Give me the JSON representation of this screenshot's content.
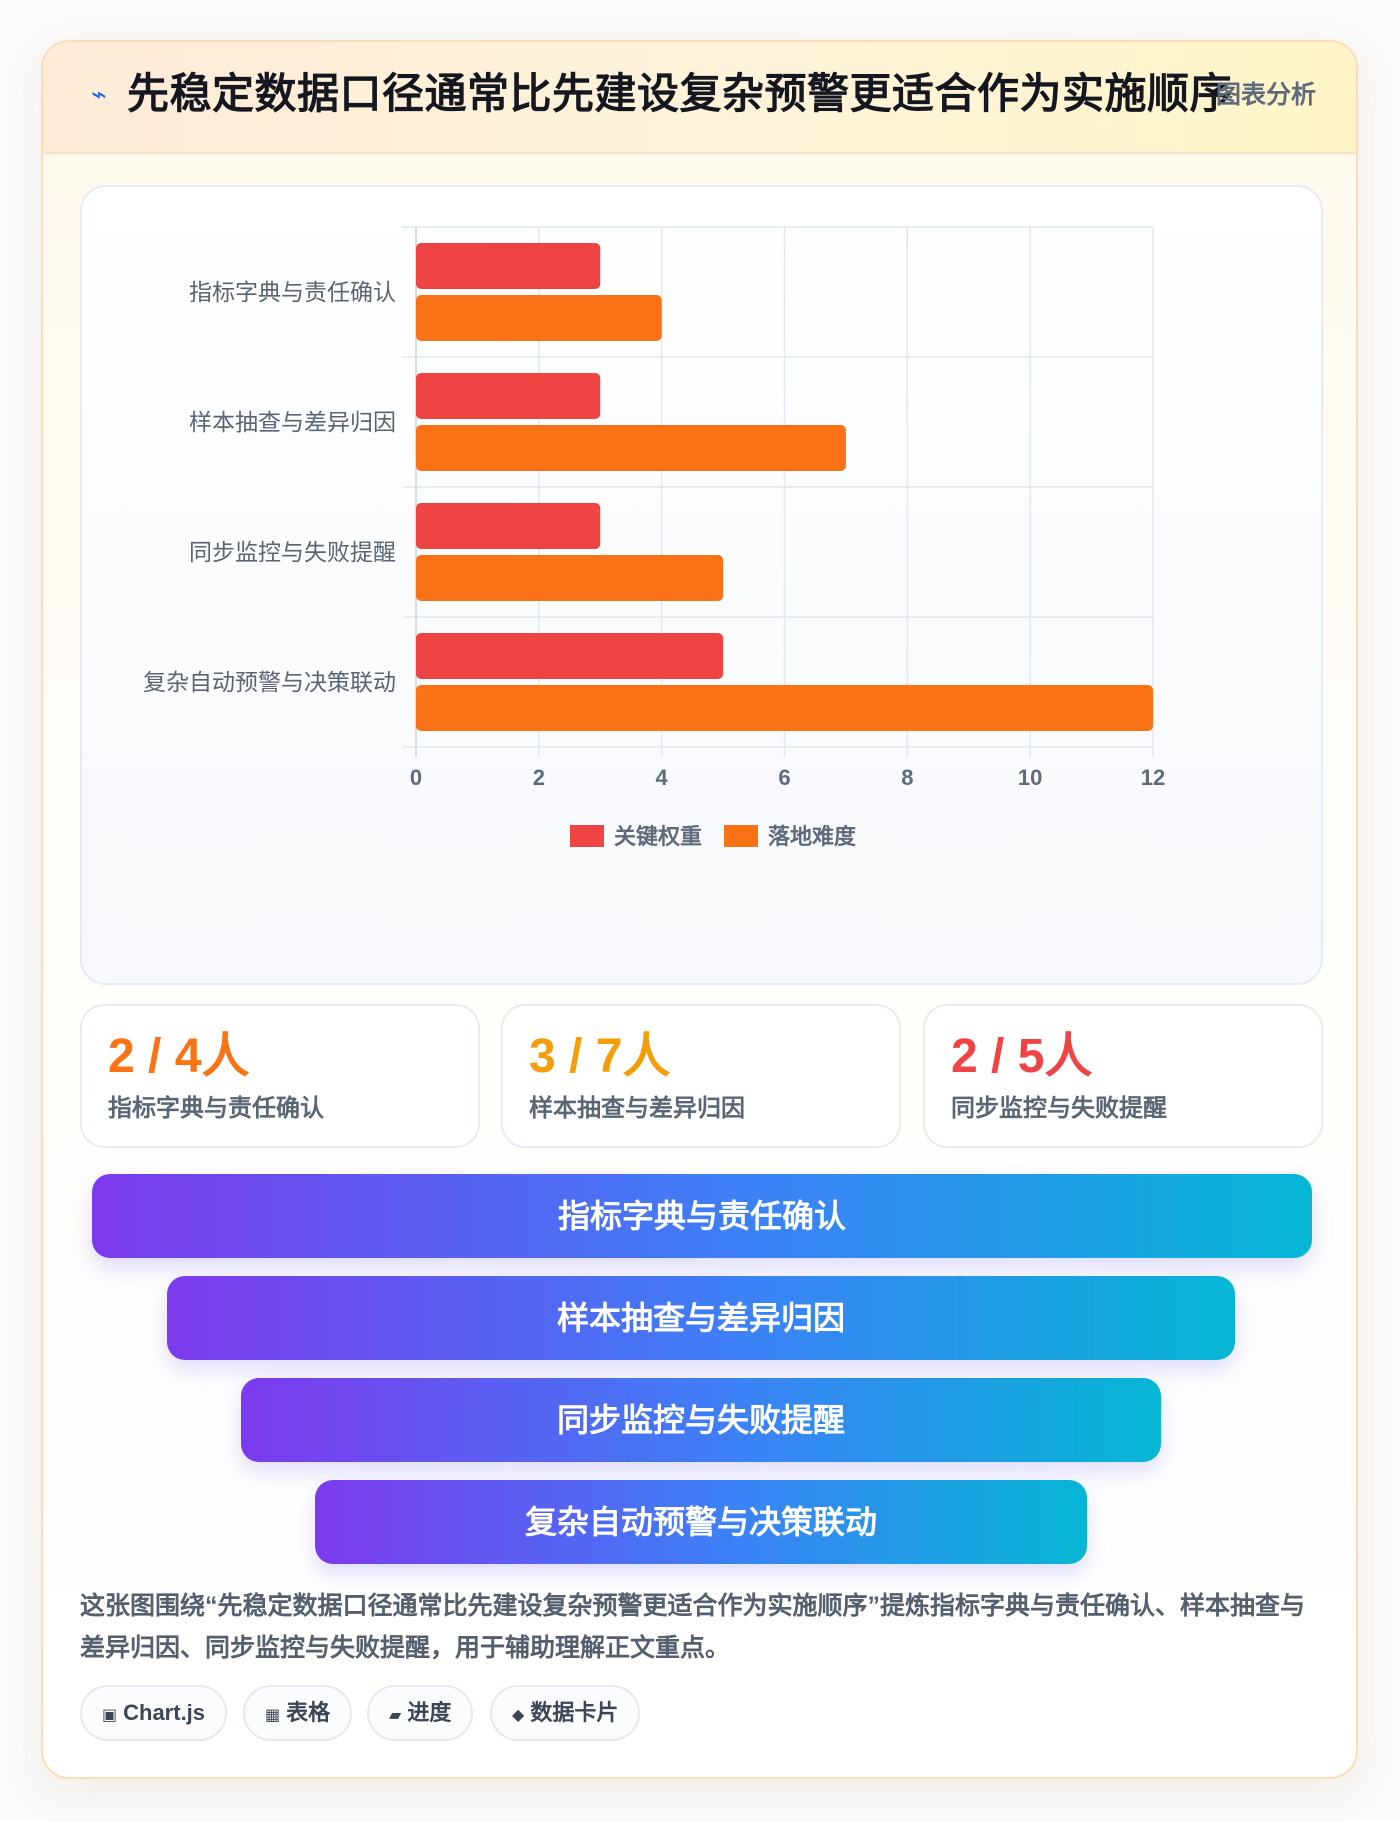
{
  "header": {
    "icon": "lightning-icon",
    "icon_glyph": "⌁",
    "title": "先稳定数据口径通常比先建设复杂预警更适合作为实施顺序",
    "tag": "图表分析"
  },
  "chart_data": {
    "type": "bar",
    "orientation": "horizontal",
    "categories": [
      "指标字典与责任确认",
      "样本抽查与差异归因",
      "同步监控与失败提醒",
      "复杂自动预警与决策联动"
    ],
    "series": [
      {
        "name": "关键权重",
        "values": [
          3,
          3,
          3,
          5
        ],
        "color": "#ef4444"
      },
      {
        "name": "落地难度",
        "values": [
          4,
          7,
          5,
          12
        ],
        "color": "#f97316"
      }
    ],
    "xlim": [
      0,
      12
    ],
    "xticks": [
      "0",
      "2",
      "4",
      "6",
      "8",
      "10",
      "12"
    ],
    "grid": true,
    "legend": "bottom"
  },
  "stats": [
    {
      "value": "2 / 4人",
      "label": "指标字典与责任确认",
      "color": "#f97316"
    },
    {
      "value": "3 / 7人",
      "label": "样本抽查与差异归因",
      "color": "#f59e0b"
    },
    {
      "value": "2 / 5人",
      "label": "同步监控与失败提醒",
      "color": "#ef4444"
    }
  ],
  "funnel": [
    {
      "label": "指标字典与责任确认"
    },
    {
      "label": "样本抽查与差异归因"
    },
    {
      "label": "同步监控与失败提醒"
    },
    {
      "label": "复杂自动预警与决策联动"
    }
  ],
  "description": "这张图围绕“先稳定数据口径通常比先建设复杂预警更适合作为实施顺序”提炼指标字典与责任确认、样本抽查与差异归因、同步监控与失败提醒，用于辅助理解正文重点。",
  "chips": [
    {
      "icon": "chart-icon",
      "glyph": "▣",
      "label": "Chart.js"
    },
    {
      "icon": "table-icon",
      "glyph": "▦",
      "label": "表格"
    },
    {
      "icon": "progress-icon",
      "glyph": "▰",
      "label": "进度"
    },
    {
      "icon": "data-card-icon",
      "glyph": "◆",
      "label": "数据卡片"
    }
  ]
}
